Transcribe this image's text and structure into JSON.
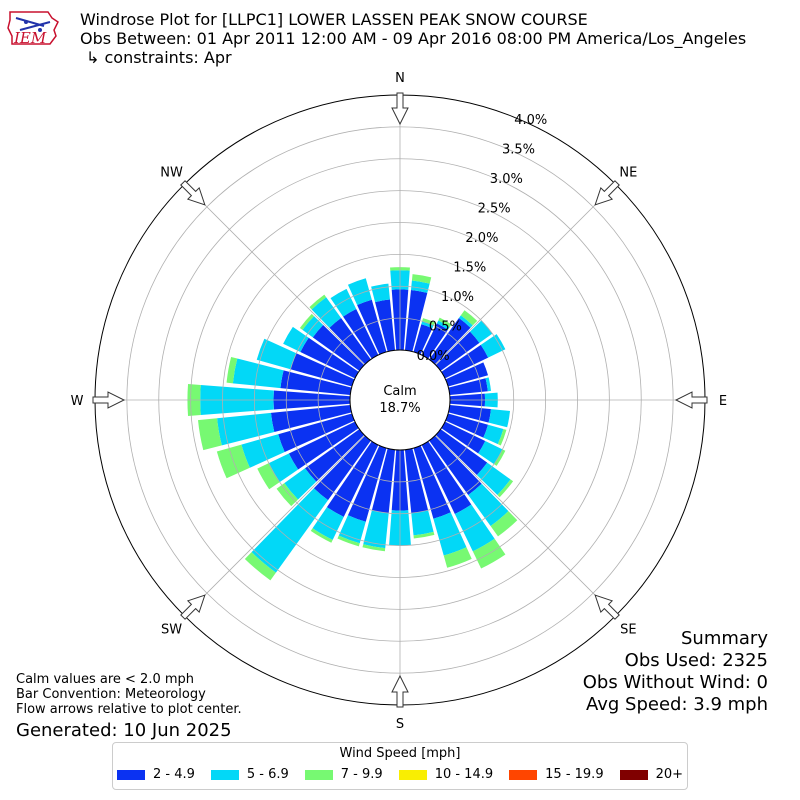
{
  "logo": {
    "text": "IEM"
  },
  "header": {
    "title": "Windrose Plot for [LLPC1] LOWER LASSEN PEAK SNOW COURSE",
    "obs_between": "Obs Between: 01 Apr 2011 12:00 AM - 09 Apr 2016 08:00 PM America/Los_Angeles",
    "constraints": "↳ constraints: Apr"
  },
  "summary": {
    "title": "Summary",
    "obs_used": "Obs Used: 2325",
    "obs_without_wind": "Obs Without Wind: 0",
    "avg_speed": "Avg Speed: 3.9 mph"
  },
  "notes": {
    "calm": "Calm values are < 2.0 mph",
    "convention": "Bar Convention: Meteorology",
    "flow": "Flow arrows relative to plot center."
  },
  "generated": "Generated: 10 Jun 2025",
  "chart_data": {
    "type": "windrose",
    "directions": [
      "N",
      "NE",
      "E",
      "SE",
      "S",
      "SW",
      "W",
      "NW"
    ],
    "calm": {
      "label": "Calm",
      "value": "18.7%"
    },
    "radial_ticks": [
      "0.0%",
      "0.5%",
      "1.0%",
      "1.5%",
      "2.0%",
      "2.5%",
      "3.0%",
      "3.5%",
      "4.0%"
    ],
    "rmax": 4.0,
    "grid": true,
    "legend": {
      "title": "Wind Speed [mph]",
      "placement": "bottom",
      "bins": [
        {
          "label": "2 - 4.9",
          "color": "#0b32f2"
        },
        {
          "label": "5 - 6.9",
          "color": "#02d8f7"
        },
        {
          "label": "7 - 9.9",
          "color": "#77f972"
        },
        {
          "label": "10 - 14.9",
          "color": "#f9ee02"
        },
        {
          "label": "15 - 19.9",
          "color": "#ff4500"
        },
        {
          "label": "20+",
          "color": "#800000"
        }
      ]
    },
    "bar_directions_deg": [
      0,
      10,
      20,
      30,
      40,
      50,
      60,
      70,
      80,
      90,
      100,
      110,
      120,
      130,
      140,
      150,
      160,
      170,
      180,
      190,
      200,
      210,
      220,
      230,
      240,
      250,
      260,
      270,
      280,
      290,
      300,
      310,
      320,
      330,
      340,
      350
    ],
    "series": [
      {
        "name": "2 - 4.9",
        "values": [
          0.95,
          0.95,
          0.45,
          0.55,
          0.8,
          0.75,
          0.75,
          0.65,
          0.6,
          0.55,
          0.65,
          0.65,
          0.7,
          0.9,
          1.05,
          1.2,
          1.15,
          1.0,
          0.95,
          1.0,
          1.2,
          1.25,
          1.15,
          1.05,
          1.15,
          1.2,
          1.25,
          1.2,
          1.1,
          1.0,
          0.95,
          0.9,
          0.8,
          0.8,
          0.85,
          0.8
        ]
      },
      {
        "name": "5 - 6.9",
        "values": [
          0.3,
          0.15,
          0.05,
          0.05,
          0.05,
          0.25,
          0.3,
          0.0,
          0.05,
          0.2,
          0.3,
          0.25,
          0.3,
          0.45,
          0.6,
          0.65,
          0.6,
          0.35,
          0.55,
          0.55,
          0.35,
          0.4,
          1.4,
          0.4,
          0.35,
          0.6,
          0.85,
          1.15,
          0.75,
          0.55,
          0.3,
          0.2,
          0.4,
          0.35,
          0.35,
          0.25
        ]
      },
      {
        "name": "7 - 9.9",
        "values": [
          0.05,
          0.1,
          0.05,
          0.05,
          0.1,
          0.0,
          0.0,
          0.0,
          0.0,
          0.0,
          0.0,
          0.05,
          0.05,
          0.05,
          0.2,
          0.3,
          0.2,
          0.05,
          0.0,
          0.05,
          0.05,
          0.05,
          0.15,
          0.15,
          0.2,
          0.4,
          0.3,
          0.2,
          0.1,
          0.0,
          0.0,
          0.05,
          0.05,
          0.0,
          0.0,
          0.0
        ]
      },
      {
        "name": "10 - 14.9",
        "values": [
          0,
          0,
          0,
          0,
          0,
          0,
          0,
          0,
          0,
          0,
          0,
          0,
          0,
          0,
          0,
          0,
          0,
          0,
          0,
          0,
          0,
          0,
          0,
          0,
          0,
          0,
          0,
          0,
          0,
          0,
          0,
          0,
          0,
          0,
          0,
          0
        ]
      },
      {
        "name": "15 - 19.9",
        "values": [
          0,
          0,
          0,
          0,
          0,
          0,
          0,
          0,
          0,
          0,
          0,
          0,
          0,
          0,
          0,
          0,
          0,
          0,
          0,
          0,
          0,
          0,
          0,
          0,
          0,
          0,
          0,
          0,
          0,
          0,
          0,
          0,
          0,
          0,
          0,
          0
        ]
      },
      {
        "name": "20+",
        "values": [
          0,
          0,
          0,
          0,
          0,
          0,
          0,
          0,
          0,
          0,
          0,
          0,
          0,
          0,
          0,
          0,
          0,
          0,
          0,
          0,
          0,
          0,
          0,
          0,
          0,
          0,
          0,
          0,
          0,
          0,
          0,
          0,
          0,
          0,
          0,
          0
        ]
      }
    ]
  }
}
